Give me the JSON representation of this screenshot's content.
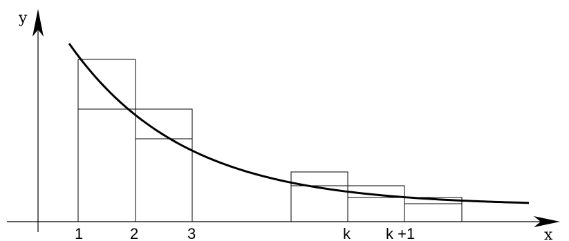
{
  "axes": {
    "x_label": "x",
    "y_label": "y"
  },
  "ticks": [
    "1",
    "2",
    "3",
    "...",
    "k",
    "k +1"
  ],
  "colors": {
    "ink": "#000000",
    "background": "#ffffff"
  }
}
